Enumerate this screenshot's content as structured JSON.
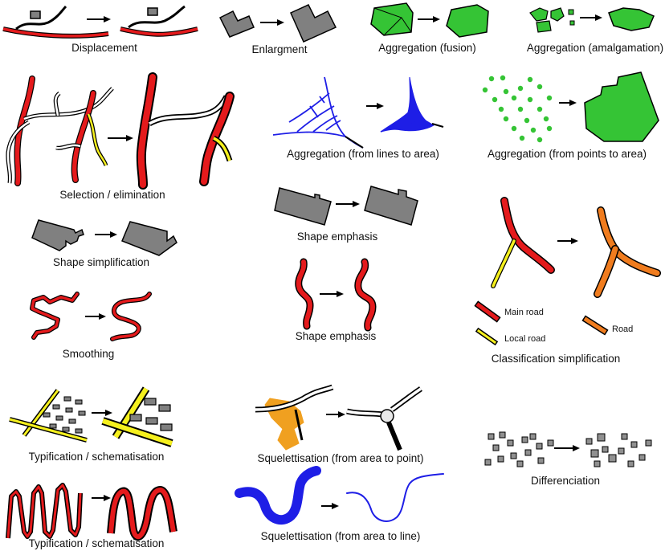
{
  "colors": {
    "main_road": "#e41a1c",
    "local_road": "#f5f01e",
    "road": "#f07c1e",
    "building": "#808080",
    "green_area": "#35c435",
    "water": "#1e1ee6",
    "orange_area": "#f0a020"
  },
  "captions": {
    "displacement": "Displacement",
    "enlargment": "Enlargment",
    "aggregation_fusion": "Aggregation (fusion)",
    "aggregation_amalgamation": "Aggregation (amalgamation)",
    "selection": "Selection / elimination",
    "aggregation_lines": "Aggregation (from lines to area)",
    "aggregation_points": "Aggregation (from points to area)",
    "shape_simplification": "Shape simplification",
    "shape_emphasis_building": "Shape emphasis",
    "shape_emphasis_road": "Shape emphasis",
    "smoothing": "Smoothing",
    "classification_simplification": "Classification simplification",
    "typification_buildings": "Typification / schematisation",
    "typification_roads": "Typification / schematisation",
    "squelettisation_point": "Squelettisation (from area to point)",
    "squelettisation_line": "Squelettisation (from area to line)",
    "differenciation": "Differenciation"
  },
  "legend": {
    "main_road": "Main road",
    "local_road": "Local road",
    "road": "Road"
  }
}
